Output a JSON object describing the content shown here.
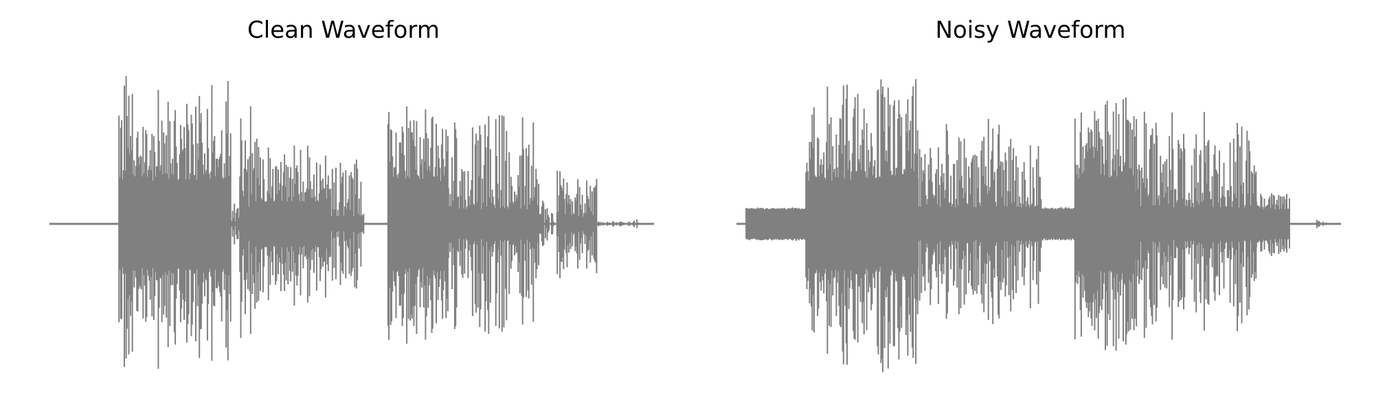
{
  "chart_data": [
    {
      "type": "area",
      "title": "Clean Waveform",
      "color": "#808080",
      "axes": "off",
      "grid": false,
      "x_range": [
        0,
        1
      ],
      "y_range": [
        -1,
        1
      ],
      "segments": [
        {
          "start": 0.0,
          "end": 0.115,
          "peak": 0.0,
          "floor": 0.0
        },
        {
          "start": 0.115,
          "end": 0.3,
          "peak": 0.95,
          "floor": 0.3
        },
        {
          "start": 0.3,
          "end": 0.315,
          "peak": 0.15,
          "floor": 0.0
        },
        {
          "start": 0.315,
          "end": 0.34,
          "peak": 0.78,
          "floor": 0.1
        },
        {
          "start": 0.34,
          "end": 0.465,
          "peak": 0.58,
          "floor": 0.15
        },
        {
          "start": 0.465,
          "end": 0.52,
          "peak": 0.42,
          "floor": 0.05
        },
        {
          "start": 0.52,
          "end": 0.56,
          "peak": 0.0,
          "floor": 0.0
        },
        {
          "start": 0.56,
          "end": 0.66,
          "peak": 0.85,
          "floor": 0.3
        },
        {
          "start": 0.66,
          "end": 0.81,
          "peak": 0.75,
          "floor": 0.1
        },
        {
          "start": 0.81,
          "end": 0.84,
          "peak": 0.15,
          "floor": 0.0
        },
        {
          "start": 0.84,
          "end": 0.905,
          "peak": 0.38,
          "floor": 0.05
        },
        {
          "start": 0.905,
          "end": 0.96,
          "peak": 0.02,
          "floor": 0.0
        },
        {
          "start": 0.96,
          "end": 0.975,
          "peak": 0.04,
          "floor": 0.0
        },
        {
          "start": 0.975,
          "end": 1.0,
          "peak": 0.0,
          "floor": 0.0
        }
      ]
    },
    {
      "type": "area",
      "title": "Noisy Waveform",
      "color": "#808080",
      "axes": "off",
      "grid": false,
      "x_range": [
        0,
        1
      ],
      "y_range": [
        -1,
        1
      ],
      "segments": [
        {
          "start": 0.0,
          "end": 0.016,
          "peak": 0.0,
          "floor": 0.0
        },
        {
          "start": 0.016,
          "end": 0.115,
          "peak": 0.11,
          "floor": 0.1
        },
        {
          "start": 0.115,
          "end": 0.3,
          "peak": 0.97,
          "floor": 0.3
        },
        {
          "start": 0.3,
          "end": 0.505,
          "peak": 0.7,
          "floor": 0.11
        },
        {
          "start": 0.505,
          "end": 0.52,
          "peak": 0.11,
          "floor": 0.1
        },
        {
          "start": 0.52,
          "end": 0.56,
          "peak": 0.11,
          "floor": 0.1
        },
        {
          "start": 0.56,
          "end": 0.66,
          "peak": 0.85,
          "floor": 0.3
        },
        {
          "start": 0.66,
          "end": 0.86,
          "peak": 0.75,
          "floor": 0.11
        },
        {
          "start": 0.86,
          "end": 0.915,
          "peak": 0.22,
          "floor": 0.1
        },
        {
          "start": 0.915,
          "end": 0.96,
          "peak": 0.0,
          "floor": 0.0
        },
        {
          "start": 0.96,
          "end": 0.975,
          "peak": 0.04,
          "floor": 0.0
        },
        {
          "start": 0.975,
          "end": 1.0,
          "peak": 0.0,
          "floor": 0.0
        }
      ]
    }
  ]
}
